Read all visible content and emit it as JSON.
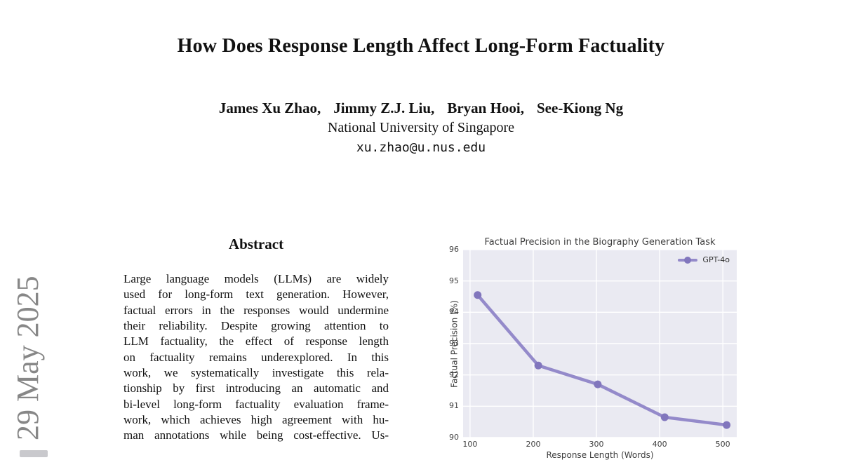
{
  "page": {
    "background": "#ffffff"
  },
  "watermark": {
    "text": "29 May 2025",
    "color": "#878787"
  },
  "header": {
    "title": "How Does Response Length Affect Long-Form Factuality",
    "authors": [
      "James Xu Zhao",
      "Jimmy Z.J. Liu",
      "Bryan Hooi",
      "See-Kiong Ng"
    ],
    "affiliation": "National University of Singapore",
    "email": "xu.zhao@u.nus.edu"
  },
  "abstract": {
    "heading": "Abstract",
    "lines": [
      "Large language models (LLMs) are widely",
      "used for long-form text generation. However,",
      "factual errors in the responses would undermine",
      "their reliability. Despite growing attention to",
      "LLM factuality, the effect of response length",
      "on factuality remains underexplored. In this",
      "work, we systematically investigate this rela-",
      "tionship by first introducing an automatic and",
      "bi-level long-form factuality evaluation frame-",
      "work, which achieves high agreement with hu-",
      "man annotations while being cost-effective. Us-"
    ]
  },
  "chart_data": {
    "type": "line",
    "title": "Factual Precision in the Biography Generation Task",
    "xlabel": "Response Length (Words)",
    "ylabel": "Factual Precision (%)",
    "xlim": [
      89,
      522
    ],
    "ylim": [
      90,
      96
    ],
    "xticks": [
      100,
      200,
      300,
      400,
      500
    ],
    "yticks": [
      90,
      91,
      92,
      93,
      94,
      95,
      96
    ],
    "grid": true,
    "grid_color": "#ffffff",
    "plot_background": "#eaeaf2",
    "legend_position": "upper right",
    "series": [
      {
        "name": "GPT-4o",
        "color": "#948aca",
        "marker_color": "#8176bd",
        "x": [
          112,
          208,
          302,
          408,
          506
        ],
        "values": [
          94.55,
          92.3,
          91.7,
          90.65,
          90.4
        ]
      }
    ]
  }
}
